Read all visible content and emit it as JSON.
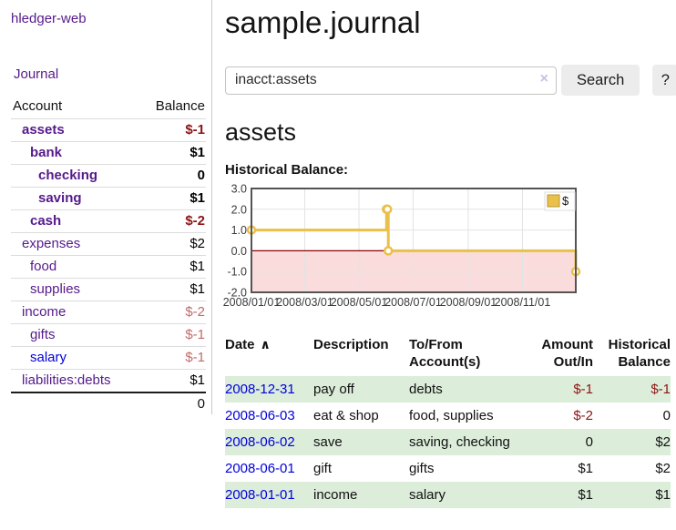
{
  "sidebar": {
    "brand": "hledger-web",
    "nav_journal": "Journal",
    "accounts": {
      "headers": {
        "account": "Account",
        "balance": "Balance"
      },
      "rows": [
        {
          "account": "assets",
          "balance": "$-1",
          "indent": 1,
          "bold": true,
          "balance_style": "neg-strong",
          "link_style": "purple"
        },
        {
          "account": "bank",
          "balance": "$1",
          "indent": 2,
          "bold": true,
          "balance_style": "pos",
          "link_style": "purple"
        },
        {
          "account": "checking",
          "balance": "0",
          "indent": 3,
          "bold": true,
          "balance_style": "pos",
          "link_style": "purple"
        },
        {
          "account": "saving",
          "balance": "$1",
          "indent": 3,
          "bold": true,
          "balance_style": "pos",
          "link_style": "purple"
        },
        {
          "account": "cash",
          "balance": "$-2",
          "indent": 2,
          "bold": true,
          "balance_style": "neg-strong",
          "link_style": "purple"
        },
        {
          "account": "expenses",
          "balance": "$2",
          "indent": 1,
          "bold": false,
          "balance_style": "pos",
          "link_style": "purple"
        },
        {
          "account": "food",
          "balance": "$1",
          "indent": 2,
          "bold": false,
          "balance_style": "pos",
          "link_style": "purple"
        },
        {
          "account": "supplies",
          "balance": "$1",
          "indent": 2,
          "bold": false,
          "balance_style": "pos",
          "link_style": "purple"
        },
        {
          "account": "income",
          "balance": "$-2",
          "indent": 1,
          "bold": false,
          "balance_style": "neg-soft",
          "link_style": "purple"
        },
        {
          "account": "gifts",
          "balance": "$-1",
          "indent": 2,
          "bold": false,
          "balance_style": "neg-soft",
          "link_style": "purple"
        },
        {
          "account": "salary",
          "balance": "$-1",
          "indent": 2,
          "bold": false,
          "balance_style": "neg-soft",
          "link_style": "blue"
        },
        {
          "account": "liabilities:debts",
          "balance": "$1",
          "indent": 1,
          "bold": false,
          "balance_style": "pos",
          "link_style": "purple"
        }
      ],
      "total": "0"
    }
  },
  "header": {
    "title": "sample.journal"
  },
  "search": {
    "value": "inacct:assets",
    "clear_label": "×",
    "search_button": "Search",
    "help_button": "?"
  },
  "account_view": {
    "title": "assets",
    "chart_heading": "Historical Balance:"
  },
  "chart_data": {
    "type": "line",
    "step": true,
    "title": "Historical Balance",
    "series": [
      {
        "name": "$",
        "color": "#E9C04A",
        "points": [
          {
            "date": "2008-01-01",
            "day": 0,
            "value": 1
          },
          {
            "date": "2008-06-01",
            "day": 152,
            "value": 2
          },
          {
            "date": "2008-06-02",
            "day": 153,
            "value": 2
          },
          {
            "date": "2008-06-03",
            "day": 154,
            "value": 0
          },
          {
            "date": "2008-12-31",
            "day": 365,
            "value": -1
          }
        ]
      }
    ],
    "x_ticks": [
      {
        "label": "2008/01/01",
        "day": 0
      },
      {
        "label": "2008/03/01",
        "day": 60
      },
      {
        "label": "2008/05/01",
        "day": 121
      },
      {
        "label": "2008/07/01",
        "day": 182
      },
      {
        "label": "2008/09/01",
        "day": 244
      },
      {
        "label": "2008/11/01",
        "day": 305
      }
    ],
    "x_range_days": 365,
    "y_ticks": [
      "3.0",
      "2.0",
      "1.0",
      "0.0",
      "-1.0",
      "-2.0"
    ],
    "ylim": [
      -2,
      3
    ],
    "legend": {
      "label": "$",
      "position": "top-right"
    },
    "grid": true,
    "colors": {
      "line": "#E9C04A",
      "marker_fill": "#FFFFFF",
      "negative_fill": "#FBDCDC",
      "zero_line": "#8B0000",
      "grid": "#E3E3E3",
      "border": "#545454",
      "legend_border": "#DDDDDD",
      "swatch_border": "#B8962E"
    }
  },
  "register": {
    "headers": {
      "date": "Date",
      "description": "Description",
      "accounts": "To/From Account(s)",
      "amount": "Amount Out/In",
      "balance": "Historical Balance"
    },
    "sort_icon": "∧",
    "rows": [
      {
        "date": "2008-12-31",
        "description": "pay off",
        "accounts": "debts",
        "amount": "$-1",
        "amount_neg": true,
        "balance": "$-1",
        "balance_neg": true
      },
      {
        "date": "2008-06-03",
        "description": "eat & shop",
        "accounts": "food, supplies",
        "amount": "$-2",
        "amount_neg": true,
        "balance": "0",
        "balance_neg": false
      },
      {
        "date": "2008-06-02",
        "description": "save",
        "accounts": "saving, checking",
        "amount": "0",
        "amount_neg": false,
        "balance": "$2",
        "balance_neg": false
      },
      {
        "date": "2008-06-01",
        "description": "gift",
        "accounts": "gifts",
        "amount": "$1",
        "amount_neg": false,
        "balance": "$2",
        "balance_neg": false
      },
      {
        "date": "2008-01-01",
        "description": "income",
        "accounts": "salary",
        "amount": "$1",
        "amount_neg": false,
        "balance": "$1",
        "balance_neg": false
      }
    ],
    "stripe_color": "#DCEDDA"
  },
  "colors": {
    "link_visited": "#551A8B",
    "link_unvisited": "#0000DD",
    "negative_strong": "#8E1414",
    "negative_soft": "#C46A6A"
  }
}
